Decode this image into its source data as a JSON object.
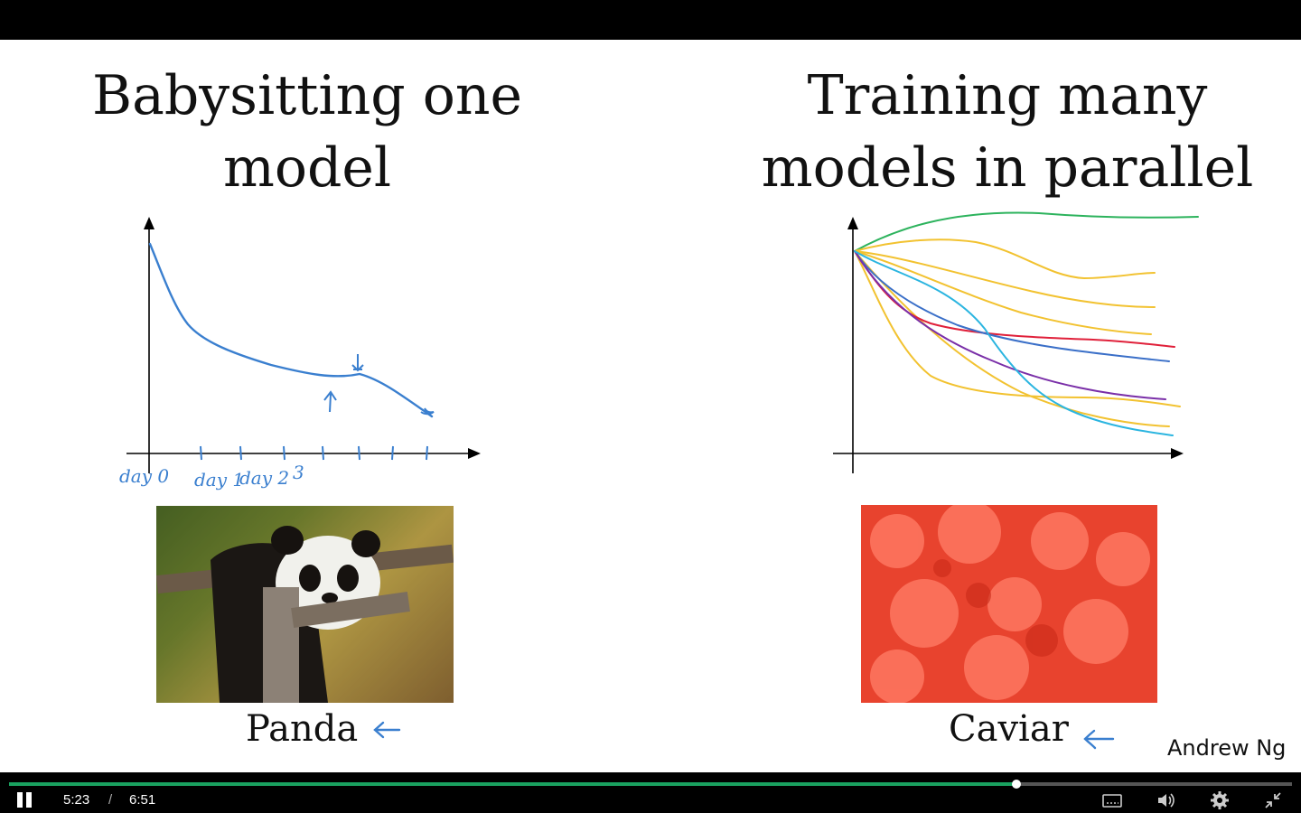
{
  "slide": {
    "left_title": [
      "Babysitting one",
      "model"
    ],
    "right_title": [
      "Training many",
      "models in parallel"
    ],
    "left_caption": "Panda",
    "right_caption": "Caviar",
    "author": "Andrew Ng",
    "handwritten_day_labels": [
      "day 0",
      "day 1",
      "day 2",
      "3"
    ]
  },
  "player": {
    "current_time": "5:23",
    "separator": "/",
    "total_time": "6:51",
    "progress_fraction": 0.785,
    "accent_color": "#1aa260",
    "icons": [
      "pause-icon",
      "captions-icon",
      "volume-icon",
      "settings-icon",
      "exit-fullscreen-icon"
    ]
  },
  "colors": {
    "ink_blue": "#3a7fcf",
    "curve_green": "#2db35d",
    "curve_yellow": "#f2c230",
    "curve_red": "#e0203a",
    "curve_purple": "#7a2fa8",
    "curve_cyan": "#2bb5e0",
    "curve_blue": "#3a6fc8"
  }
}
